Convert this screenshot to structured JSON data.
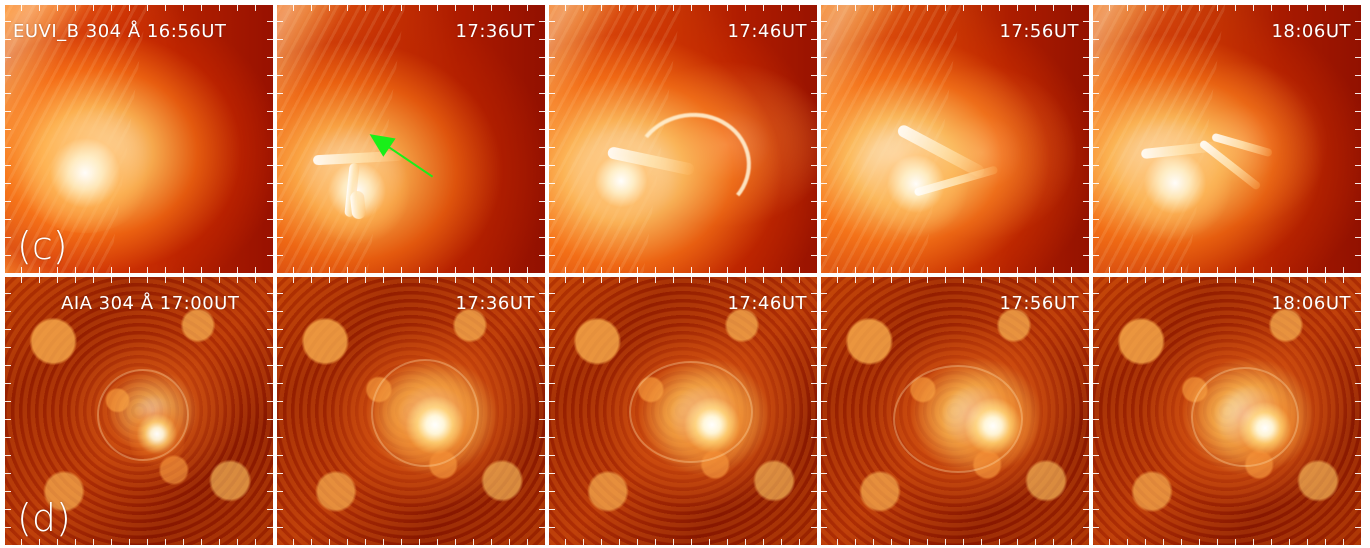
{
  "figure": {
    "rows": [
      {
        "row_label": "(c)",
        "panels": [
          {
            "label": "EUVI_B 304 Å 16:56UT"
          },
          {
            "label": "17:36UT"
          },
          {
            "label": "17:46UT"
          },
          {
            "label": "17:56UT"
          },
          {
            "label": "18:06UT"
          }
        ]
      },
      {
        "row_label": "(d)",
        "panels": [
          {
            "label": "AIA 304 Å 17:00UT"
          },
          {
            "label": "17:36UT"
          },
          {
            "label": "17:46UT"
          },
          {
            "label": "17:56UT"
          },
          {
            "label": "18:06UT"
          }
        ]
      }
    ]
  },
  "colors": {
    "arrow": "#19ef19",
    "border": "#ffffff"
  },
  "icons": {
    "arrow": "green-arrow-icon"
  }
}
